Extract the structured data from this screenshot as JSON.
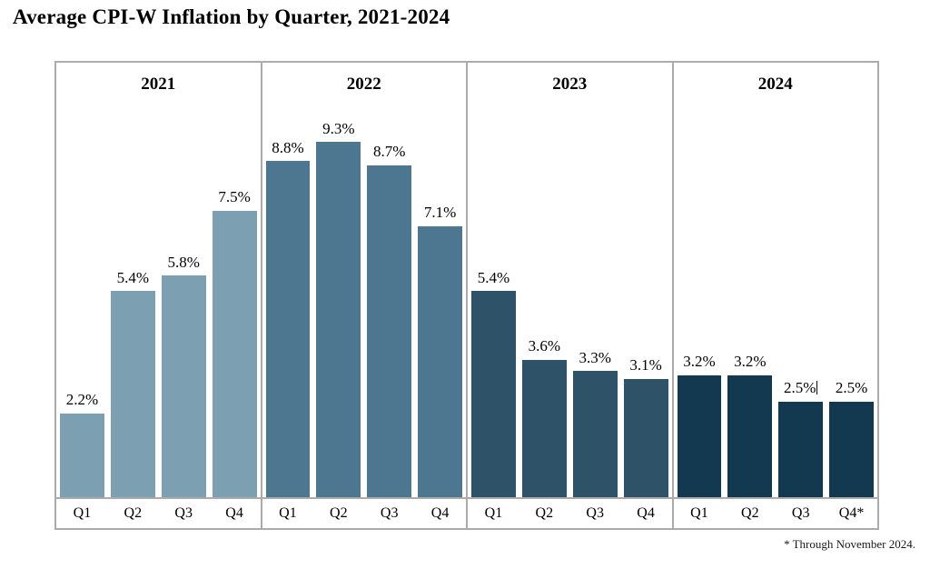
{
  "page": {
    "title": "Average CPI-W Inflation by Quarter, 2021-2024",
    "footnote": "* Through November 2024."
  },
  "chart_data": {
    "type": "bar",
    "title": "Average CPI-W Inflation by Quarter, 2021-2024",
    "xlabel": "",
    "ylabel": "",
    "unit": "%",
    "ylim": [
      0,
      10
    ],
    "grid": false,
    "legend": "none (years shown as panel headers)",
    "border_color": "#ababab",
    "footnote": "* Through November 2024.",
    "groups": [
      {
        "year": "2021",
        "color": "#7D9FB2",
        "quarters": [
          "Q1",
          "Q2",
          "Q3",
          "Q4"
        ],
        "values": [
          2.2,
          5.4,
          5.8,
          7.5
        ],
        "labels": [
          "2.2%",
          "5.4%",
          "5.8%",
          "7.5%"
        ]
      },
      {
        "year": "2022",
        "color": "#4D7690",
        "quarters": [
          "Q1",
          "Q2",
          "Q3",
          "Q4"
        ],
        "values": [
          8.8,
          9.3,
          8.7,
          7.1
        ],
        "labels": [
          "8.8%",
          "9.3%",
          "8.7%",
          "7.1%"
        ]
      },
      {
        "year": "2023",
        "color": "#2E5368",
        "quarters": [
          "Q1",
          "Q2",
          "Q3",
          "Q4"
        ],
        "values": [
          5.4,
          3.6,
          3.3,
          3.1
        ],
        "labels": [
          "5.4%",
          "3.6%",
          "3.3%",
          "3.1%"
        ]
      },
      {
        "year": "2024",
        "color": "#123950",
        "quarters": [
          "Q1",
          "Q2",
          "Q3",
          "Q4*"
        ],
        "values": [
          3.2,
          3.2,
          2.5,
          2.5
        ],
        "labels": [
          "3.2%",
          "3.2%",
          "2.5%",
          "2.5%"
        ],
        "text_cursor_after_index": 2
      }
    ]
  }
}
